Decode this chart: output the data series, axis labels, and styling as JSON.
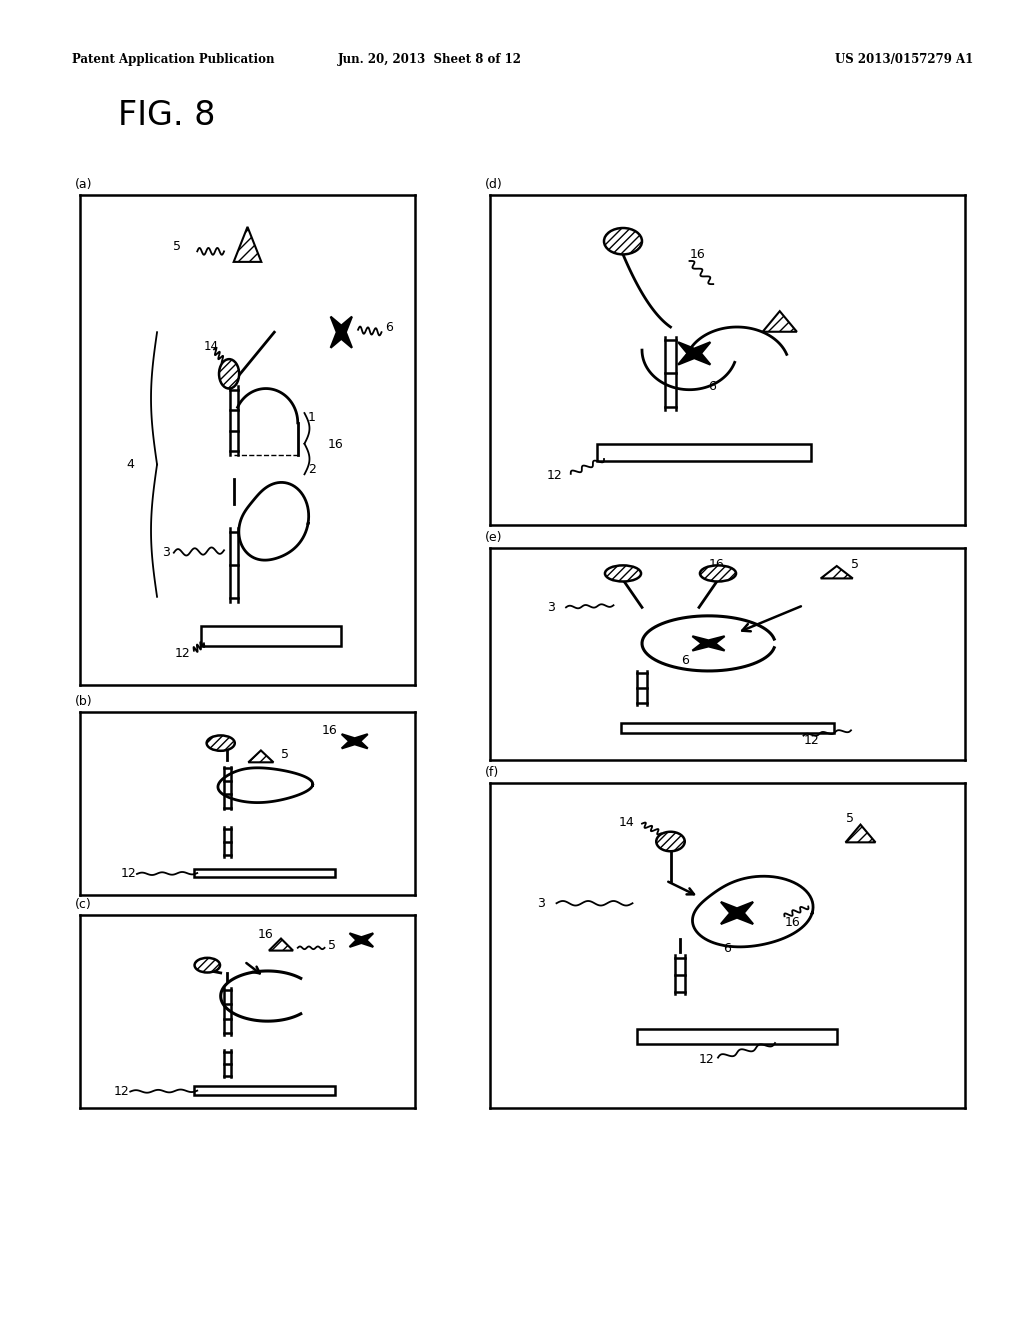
{
  "header_left": "Patent Application Publication",
  "header_center": "Jun. 20, 2013  Sheet 8 of 12",
  "header_right": "US 2013/0157279 A1",
  "title": "FIG. 8",
  "background": "#ffffff"
}
